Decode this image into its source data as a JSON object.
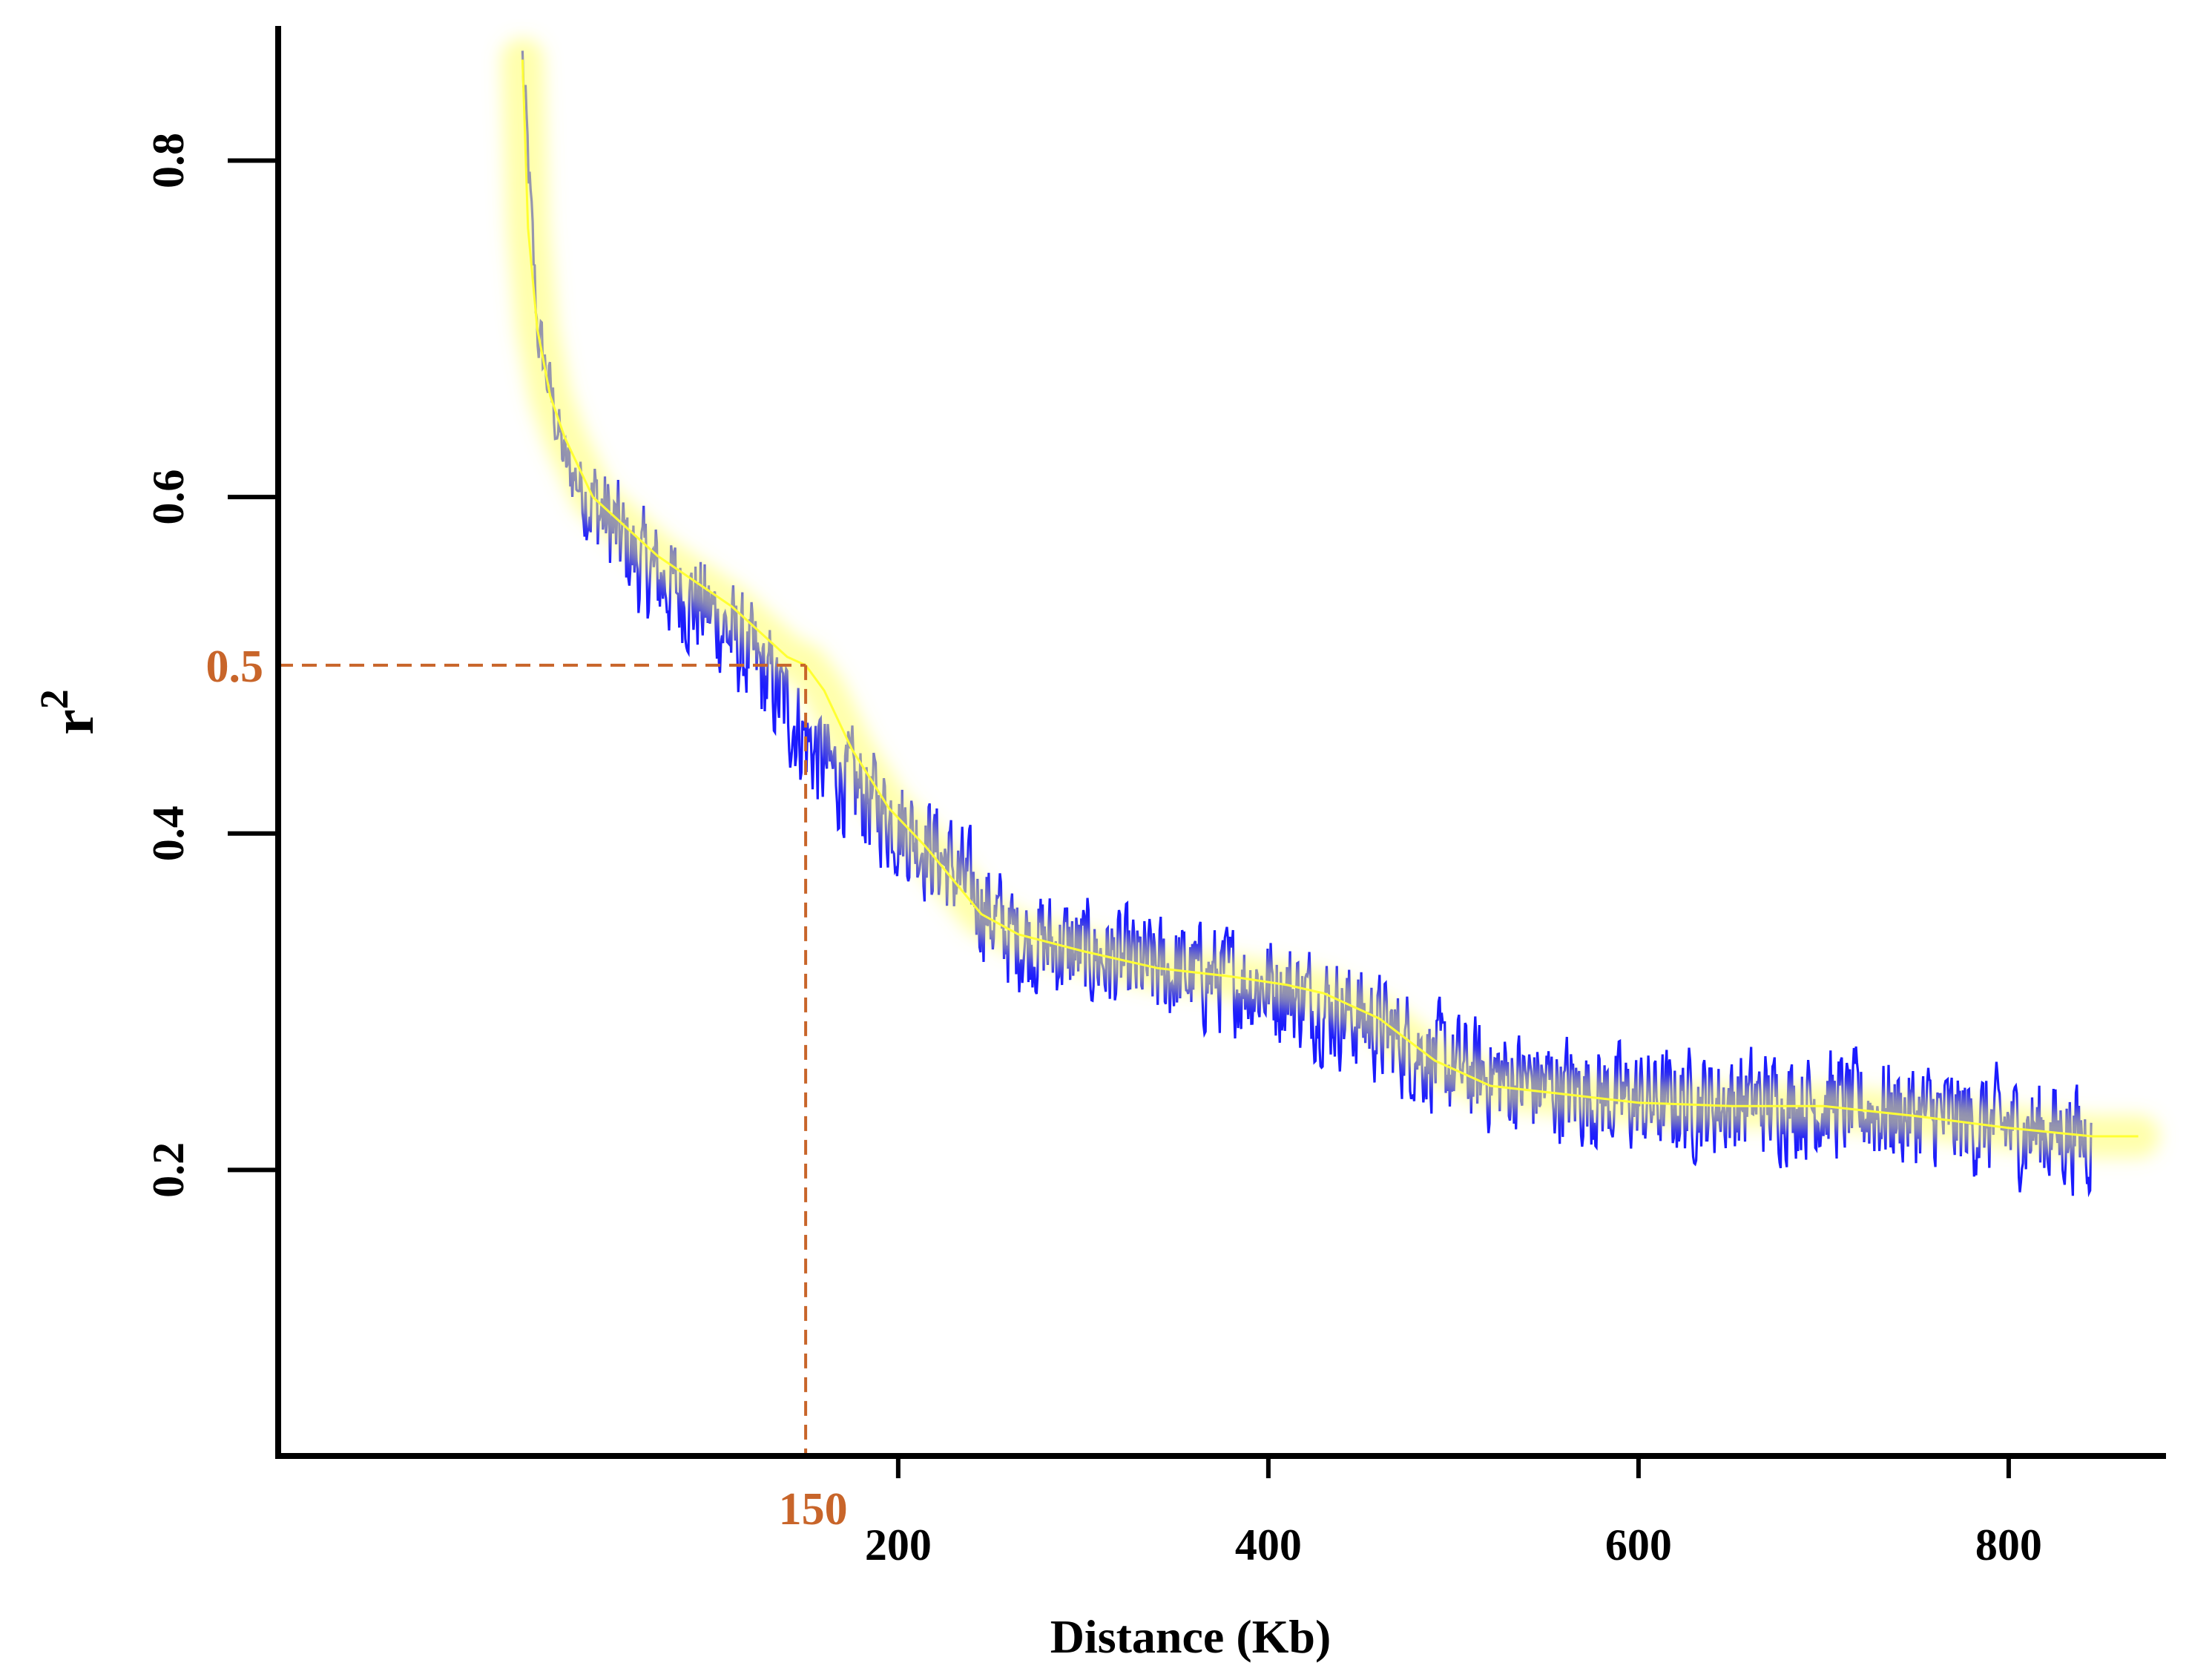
{
  "chart_data": {
    "type": "line",
    "xlabel": "Distance (Kb)",
    "ylabel": "r",
    "ylabel_superscript": "2",
    "xlim": [
      -135,
      885
    ],
    "ylim": [
      0.03,
      0.88
    ],
    "x_ticks": [
      200,
      400,
      600,
      800
    ],
    "x_tick_labels": [
      "200",
      "400",
      "600",
      "800"
    ],
    "y_ticks": [
      0.2,
      0.4,
      0.6,
      0.8
    ],
    "y_tick_labels": [
      "0.2",
      "0.4",
      "0.6",
      "0.8"
    ],
    "grid": false,
    "legend": "none",
    "colors": {
      "raw": "#1a1aff",
      "smooth": "#ffff33",
      "glow": "#ffff66",
      "annotation": "#c8652a",
      "axis": "#000000"
    },
    "series": [
      {
        "kind": "raw",
        "x_range": [
          -3,
          845
        ],
        "noise_amplitude": 0.035,
        "note_points": [
          [
            -3,
            0.86
          ],
          [
            5,
            0.7
          ],
          [
            20,
            0.62
          ],
          [
            60,
            0.56
          ],
          [
            100,
            0.53
          ],
          [
            130,
            0.49
          ],
          [
            160,
            0.44
          ],
          [
            220,
            0.39
          ],
          [
            260,
            0.34
          ],
          [
            330,
            0.32
          ],
          [
            400,
            0.31
          ],
          [
            450,
            0.29
          ],
          [
            500,
            0.26
          ],
          [
            550,
            0.25
          ],
          [
            600,
            0.24
          ],
          [
            700,
            0.24
          ],
          [
            800,
            0.225
          ],
          [
            845,
            0.22
          ]
        ]
      },
      {
        "kind": "smooth",
        "x": [
          -3,
          0,
          5,
          12,
          20,
          35,
          50,
          70,
          90,
          110,
          130,
          140,
          150,
          160,
          175,
          195,
          215,
          230,
          245,
          265,
          300,
          340,
          380,
          410,
          430,
          460,
          490,
          520,
          560,
          600,
          650,
          700,
          750,
          800,
          845,
          870
        ],
        "y": [
          0.86,
          0.76,
          0.7,
          0.66,
          0.635,
          0.6,
          0.585,
          0.565,
          0.55,
          0.535,
          0.515,
          0.505,
          0.5,
          0.485,
          0.45,
          0.415,
          0.392,
          0.372,
          0.352,
          0.34,
          0.33,
          0.32,
          0.315,
          0.31,
          0.305,
          0.29,
          0.265,
          0.25,
          0.245,
          0.24,
          0.238,
          0.238,
          0.232,
          0.225,
          0.22,
          0.22
        ]
      }
    ],
    "annotation": {
      "x": 150,
      "y": 0.5,
      "x_label": "150",
      "y_label": "0.5"
    }
  }
}
